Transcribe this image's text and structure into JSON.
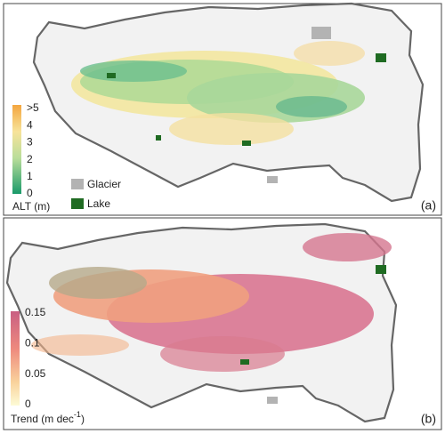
{
  "panels": [
    {
      "tag": "(a)",
      "colorbar": {
        "label": "ALT (m)",
        "ticks": [
          ">5",
          "4",
          "3",
          "2",
          "1",
          "0"
        ]
      },
      "legend": [
        {
          "label": "Glacier",
          "color": "#b3b3b3"
        },
        {
          "label": "Lake",
          "color": "#1f6b22"
        }
      ]
    },
    {
      "tag": "(b)",
      "colorbar": {
        "label": "Trend (m dec",
        "label_sup": "-1",
        "label_end": ")",
        "ticks": [
          "0.15",
          "0.1",
          "0.05",
          "0"
        ]
      }
    }
  ]
}
